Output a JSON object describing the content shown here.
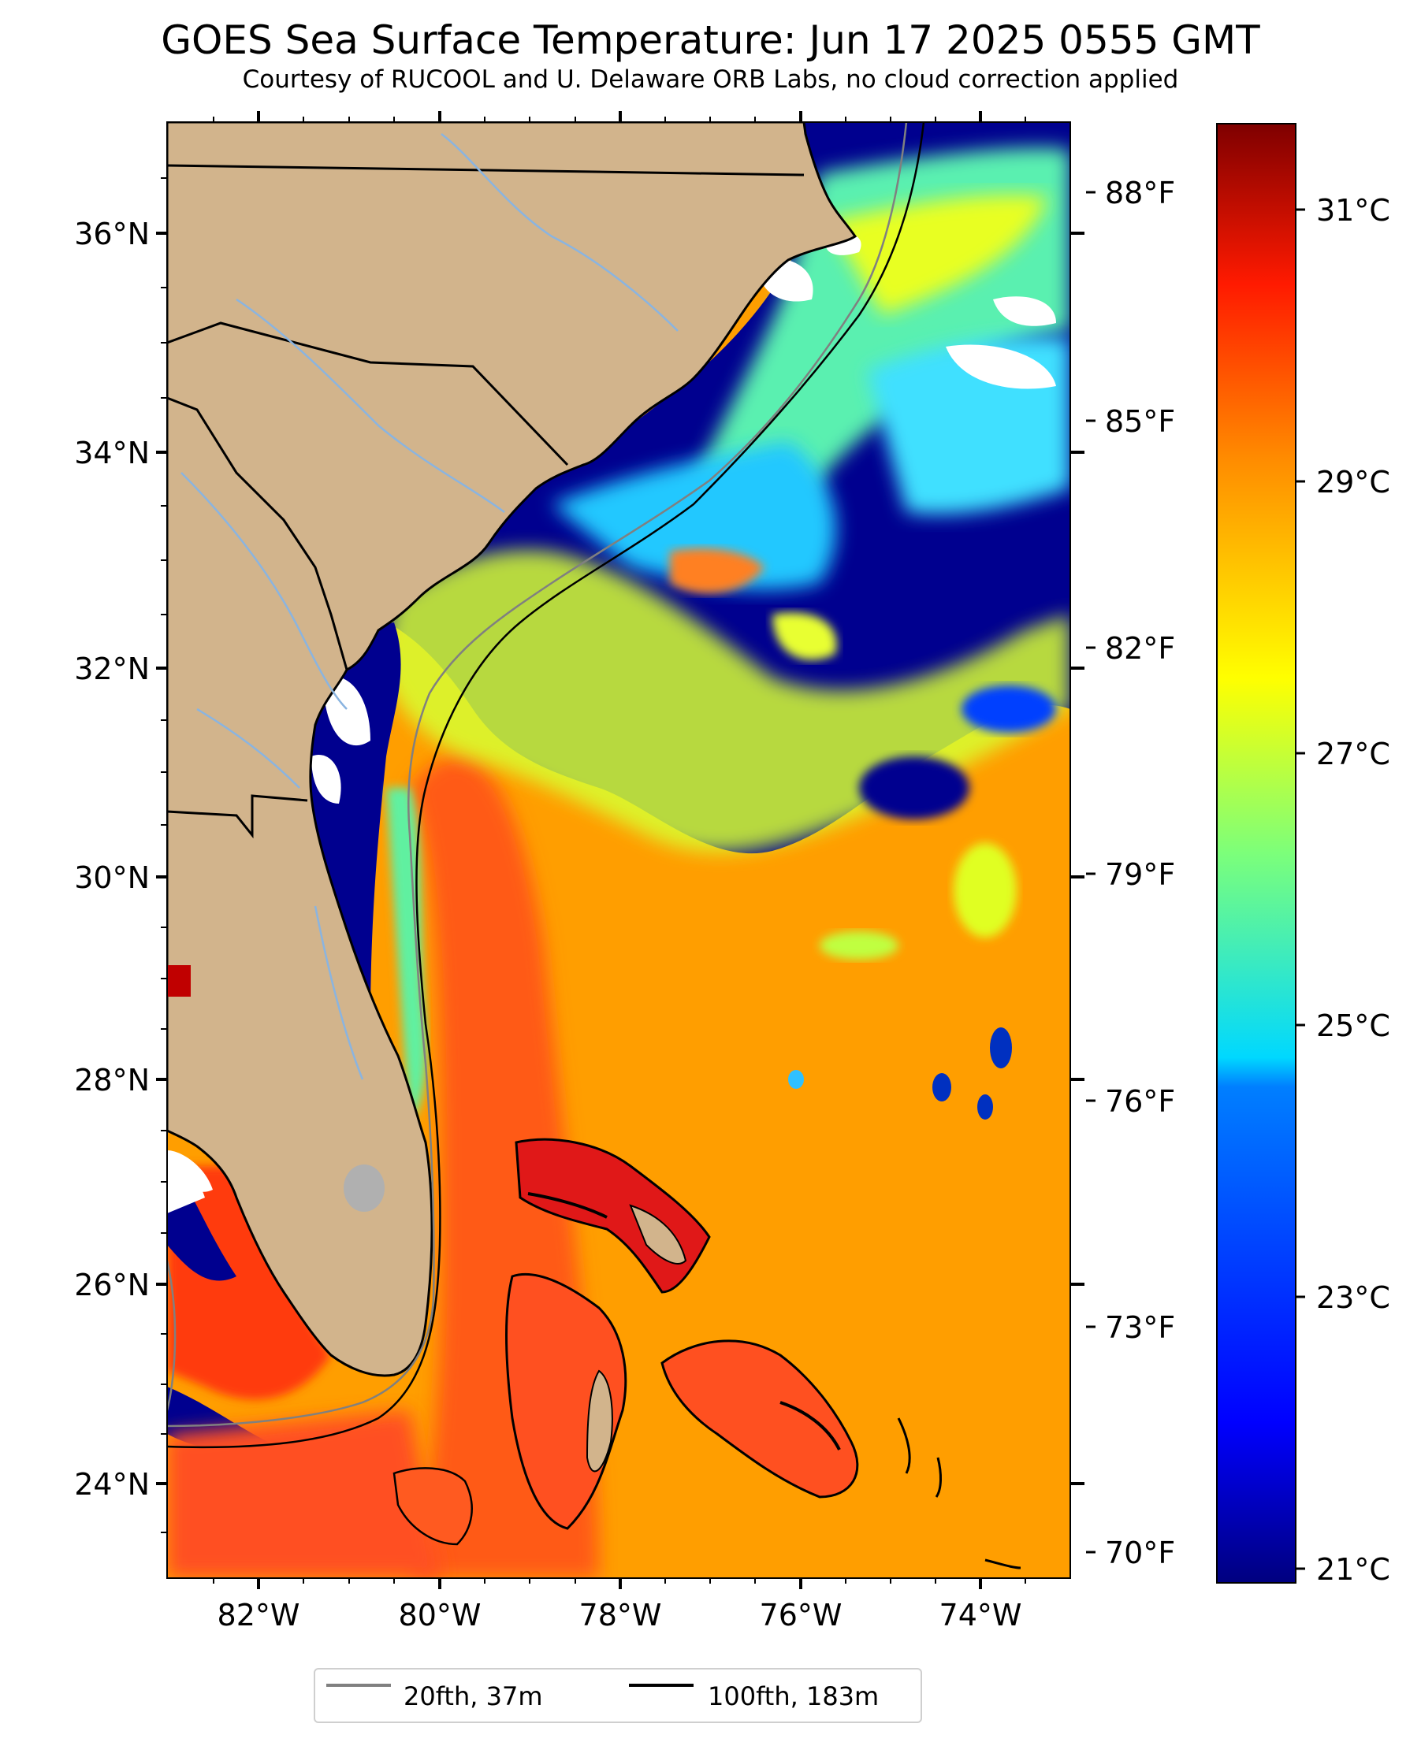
{
  "title": "GOES Sea Surface Temperature: Jun 17 2025 0555 GMT",
  "subtitle": "Courtesy of RUCOOL and U. Delaware ORB Labs, no cloud correction applied",
  "map": {
    "lat_labels": [
      "36°N",
      "34°N",
      "32°N",
      "30°N",
      "28°N",
      "26°N",
      "24°N"
    ],
    "lon_labels": [
      "82°W",
      "80°W",
      "78°W",
      "76°W",
      "74°W"
    ],
    "fahrenheit_labels": [
      "88°F",
      "85°F",
      "82°F",
      "79°F",
      "76°F",
      "73°F",
      "70°F"
    ]
  },
  "colorbar": {
    "celsius_labels": [
      "31°C",
      "29°C",
      "27°C",
      "25°C",
      "23°C",
      "21°C"
    ],
    "colors": [
      "#00007f",
      "#0000ff",
      "#007fff",
      "#00ffff",
      "#7fff7f",
      "#ffff00",
      "#ff7f00",
      "#ff0000",
      "#7f0000"
    ]
  },
  "legend": {
    "items": [
      {
        "label": "20fth, 37m",
        "color": "#808080"
      },
      {
        "label": "100fth, 183m",
        "color": "#000000"
      }
    ]
  },
  "colors": {
    "land": "#d2b48c",
    "ocean_warm": "#ff9a00",
    "gulf_stream": "#ff5a14",
    "cool_shelf": "#00008f",
    "cloud": "#ffffff"
  }
}
